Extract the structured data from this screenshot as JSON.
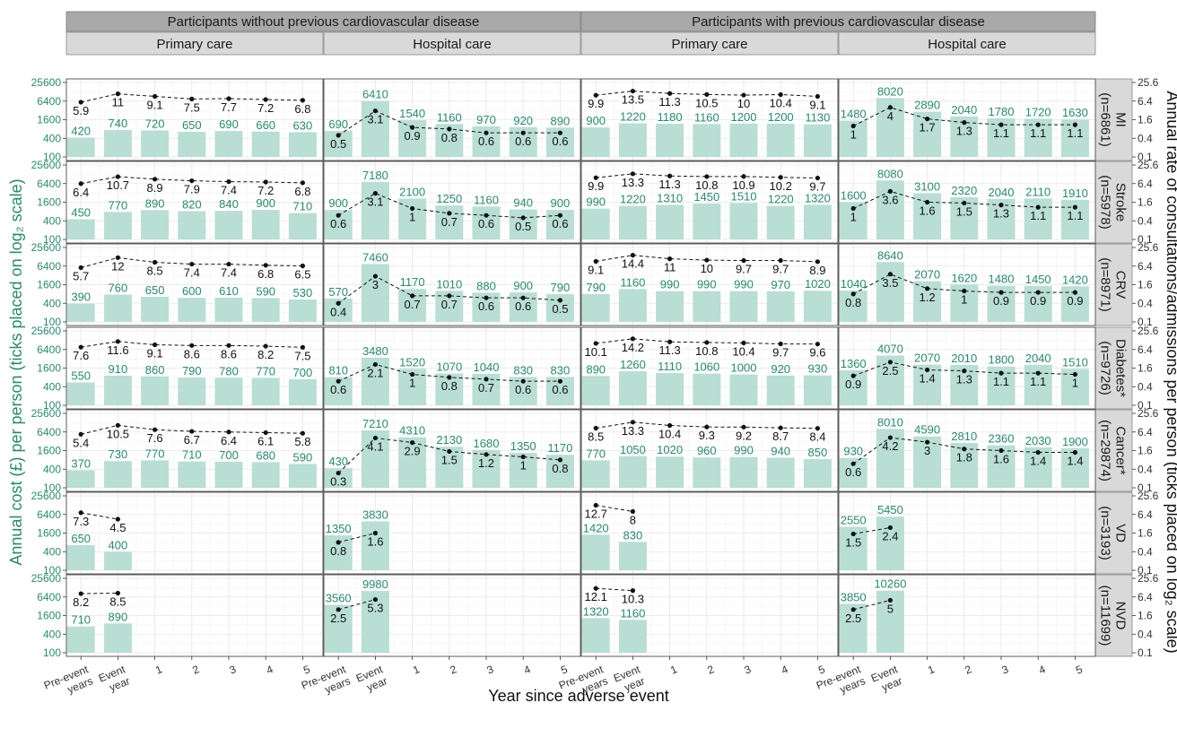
{
  "figure": {
    "col_groups": [
      "Participants without previous cardiovascular disease",
      "Participants with previous cardiovascular disease"
    ],
    "care_types": [
      "Primary care",
      "Hospital care"
    ],
    "x_ticks": [
      [
        "Pre-event",
        "years"
      ],
      [
        "Event",
        "year"
      ],
      [
        "1"
      ],
      [
        "2"
      ],
      [
        "3"
      ],
      [
        "4"
      ],
      [
        "5"
      ]
    ],
    "x_title": "Year since adverse event",
    "y_left_title": "Annual cost (£) per person (ticks placed on log₂ scale)",
    "y_right_title": "Annual rate of consultations/admissions per person (ticks placed on log₂ scale)",
    "y_left_ticks": [
      "25600",
      "6400",
      "1600",
      "400",
      "100"
    ],
    "y_right_ticks": [
      "25.6",
      "6.4",
      "1.6",
      "0.4",
      "0.1"
    ],
    "colors": {
      "bar": "#b9ded3",
      "cost_label": "#2a8a6e",
      "rate_point": "#111111",
      "strip": "#d9d9d9",
      "strip_top": "#a9a9a9"
    }
  },
  "chart_data": {
    "type": "bar",
    "scale": "log2",
    "ylim_cost": [
      100,
      25600
    ],
    "ylim_rate": [
      0.1,
      25.6
    ],
    "x": [
      "Pre-event years",
      "Event year",
      "1",
      "2",
      "3",
      "4",
      "5"
    ],
    "panels": [
      {
        "row": "MI",
        "n": "(n=6861)",
        "cols": [
          {
            "cost": [
              420,
              740,
              720,
              650,
              690,
              660,
              630
            ],
            "rate": [
              5.9,
              11,
              9.1,
              7.5,
              7.7,
              7.2,
              6.8
            ]
          },
          {
            "cost": [
              690,
              6410,
              1540,
              1160,
              970,
              920,
              890
            ],
            "rate": [
              0.5,
              3.1,
              0.9,
              0.8,
              0.6,
              0.6,
              0.6
            ]
          },
          {
            "cost": [
              900,
              1220,
              1180,
              1160,
              1200,
              1200,
              1130
            ],
            "rate": [
              9.9,
              13.5,
              11.3,
              10.5,
              10,
              10.4,
              9.1
            ]
          },
          {
            "cost": [
              1480,
              8020,
              2890,
              2040,
              1780,
              1720,
              1630
            ],
            "rate": [
              1,
              4,
              1.7,
              1.3,
              1.1,
              1.1,
              1.1
            ]
          }
        ]
      },
      {
        "row": "Stroke",
        "n": "(n=5978)",
        "cols": [
          {
            "cost": [
              450,
              770,
              890,
              820,
              840,
              900,
              710
            ],
            "rate": [
              6.4,
              10.7,
              8.9,
              7.9,
              7.4,
              7.2,
              6.8
            ]
          },
          {
            "cost": [
              900,
              7180,
              2100,
              1250,
              1160,
              940,
              900
            ],
            "rate": [
              0.6,
              3.1,
              1,
              0.7,
              0.6,
              0.5,
              0.6
            ]
          },
          {
            "cost": [
              990,
              1220,
              1310,
              1450,
              1510,
              1220,
              1320
            ],
            "rate": [
              9.9,
              13.3,
              11.3,
              10.8,
              10.9,
              10.2,
              9.7
            ]
          },
          {
            "cost": [
              1600,
              8080,
              3100,
              2320,
              2040,
              2110,
              1910
            ],
            "rate": [
              1,
              3.6,
              1.6,
              1.5,
              1.3,
              1.1,
              1.1
            ]
          }
        ]
      },
      {
        "row": "CRV",
        "n": "(n=8971)",
        "cols": [
          {
            "cost": [
              390,
              760,
              650,
              600,
              610,
              590,
              530
            ],
            "rate": [
              5.7,
              12,
              8.5,
              7.4,
              7.4,
              6.8,
              6.5
            ]
          },
          {
            "cost": [
              570,
              7460,
              1170,
              1010,
              880,
              900,
              790
            ],
            "rate": [
              0.4,
              3,
              0.7,
              0.7,
              0.6,
              0.6,
              0.5
            ]
          },
          {
            "cost": [
              790,
              1160,
              990,
              990,
              990,
              970,
              1020
            ],
            "rate": [
              9.1,
              14.4,
              11,
              10,
              9.7,
              9.7,
              8.9
            ]
          },
          {
            "cost": [
              1040,
              8640,
              2070,
              1620,
              1480,
              1450,
              1420
            ],
            "rate": [
              0.8,
              3.5,
              1.2,
              1,
              0.9,
              0.9,
              0.9
            ]
          }
        ]
      },
      {
        "row": "Diabetes*",
        "n": "(n=9726)",
        "cols": [
          {
            "cost": [
              550,
              910,
              860,
              790,
              780,
              770,
              700
            ],
            "rate": [
              7.6,
              11.6,
              9.1,
              8.6,
              8.6,
              8.2,
              7.5
            ]
          },
          {
            "cost": [
              810,
              3480,
              1520,
              1070,
              1040,
              830,
              830
            ],
            "rate": [
              0.6,
              2.1,
              1,
              0.8,
              0.7,
              0.6,
              0.6
            ]
          },
          {
            "cost": [
              890,
              1260,
              1110,
              1060,
              1000,
              920,
              930
            ],
            "rate": [
              10.1,
              14.2,
              11.3,
              10.8,
              10.4,
              9.7,
              9.6
            ]
          },
          {
            "cost": [
              1360,
              4070,
              2070,
              2010,
              1800,
              2040,
              1510
            ],
            "rate": [
              0.9,
              2.5,
              1.4,
              1.3,
              1.1,
              1.1,
              1
            ]
          }
        ]
      },
      {
        "row": "Cancer*",
        "n": "(n=29874)",
        "cols": [
          {
            "cost": [
              370,
              730,
              770,
              710,
              700,
              680,
              590
            ],
            "rate": [
              5.4,
              10.5,
              7.6,
              6.7,
              6.4,
              6.1,
              5.8
            ]
          },
          {
            "cost": [
              430,
              7210,
              4310,
              2130,
              1680,
              1350,
              1170
            ],
            "rate": [
              0.3,
              4.1,
              2.9,
              1.5,
              1.2,
              1,
              0.8
            ]
          },
          {
            "cost": [
              770,
              1050,
              1020,
              960,
              990,
              940,
              850
            ],
            "rate": [
              8.5,
              13.3,
              10.4,
              9.3,
              9.2,
              8.7,
              8.4
            ]
          },
          {
            "cost": [
              930,
              8010,
              4590,
              2810,
              2360,
              2030,
              1900
            ],
            "rate": [
              0.6,
              4.2,
              3,
              1.8,
              1.6,
              1.4,
              1.4
            ]
          }
        ]
      },
      {
        "row": "VD",
        "n": "(n=3193)",
        "cols": [
          {
            "cost": [
              650,
              400
            ],
            "rate": [
              7.3,
              4.5
            ]
          },
          {
            "cost": [
              1350,
              3830
            ],
            "rate": [
              0.8,
              1.6
            ]
          },
          {
            "cost": [
              1420,
              830
            ],
            "rate": [
              12.7,
              8
            ]
          },
          {
            "cost": [
              2550,
              5450
            ],
            "rate": [
              1.5,
              2.4
            ]
          }
        ]
      },
      {
        "row": "NVD",
        "n": "(n=11699)",
        "cols": [
          {
            "cost": [
              710,
              890
            ],
            "rate": [
              8.2,
              8.5
            ]
          },
          {
            "cost": [
              3560,
              9980
            ],
            "rate": [
              2.5,
              5.3
            ]
          },
          {
            "cost": [
              1320,
              1160
            ],
            "rate": [
              12.1,
              10.3
            ]
          },
          {
            "cost": [
              3850,
              10260
            ],
            "rate": [
              2.5,
              5
            ]
          }
        ]
      }
    ]
  }
}
